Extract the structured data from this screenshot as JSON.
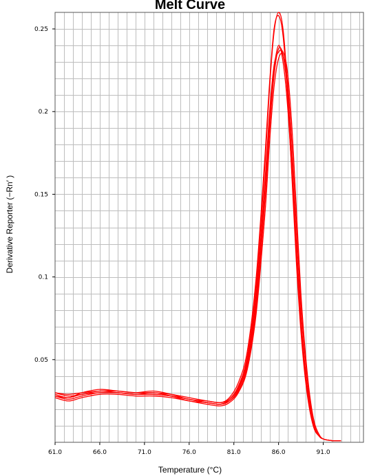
{
  "chart_data": {
    "type": "line",
    "title": "Melt Curve",
    "xlabel": "Temperature (°C)",
    "ylabel": "Derivative Reporter (−Rn′ )",
    "xlim": [
      61.0,
      95.5
    ],
    "ylim": [
      0.0,
      0.26
    ],
    "x_ticks": [
      61.0,
      66.0,
      71.0,
      76.0,
      81.0,
      86.0,
      91.0
    ],
    "x_tick_labels": [
      "61.0",
      "66.0",
      "71.0",
      "76.0",
      "81.0",
      "86.0",
      "91.0"
    ],
    "y_ticks": [
      0.05,
      0.1,
      0.15,
      0.2,
      0.25
    ],
    "y_tick_labels": [
      "0.05",
      "0.1",
      "0.15",
      "0.2",
      "0.25"
    ],
    "grid": true,
    "line_color": "#ff0000",
    "series": [
      {
        "x": [
          61.0,
          62.5,
          64.0,
          66.0,
          68.0,
          70.0,
          72.0,
          74.0,
          76.0,
          78.0,
          79.5,
          80.5,
          81.5,
          82.5,
          83.5,
          84.5,
          85.0,
          85.5,
          86.0,
          86.5,
          87.0,
          87.5,
          88.0,
          88.5,
          89.0,
          89.5,
          90.0,
          90.5,
          91.0,
          92.0,
          93.0
        ],
        "y": [
          0.03,
          0.028,
          0.029,
          0.031,
          0.03,
          0.029,
          0.03,
          0.028,
          0.025,
          0.024,
          0.023,
          0.026,
          0.034,
          0.052,
          0.095,
          0.17,
          0.215,
          0.248,
          0.26,
          0.25,
          0.215,
          0.165,
          0.112,
          0.07,
          0.04,
          0.02,
          0.008,
          0.004,
          0.002,
          0.001,
          0.001
        ]
      },
      {
        "x": [
          61.0,
          62.5,
          64.0,
          66.0,
          68.0,
          70.0,
          72.0,
          74.0,
          76.0,
          78.0,
          79.5,
          80.5,
          81.5,
          82.5,
          83.5,
          84.5,
          85.0,
          85.5,
          86.0,
          86.5,
          87.0,
          87.5,
          88.0,
          88.5,
          89.0,
          89.5,
          90.0,
          90.5,
          91.0,
          92.0,
          93.0
        ],
        "y": [
          0.029,
          0.027,
          0.03,
          0.032,
          0.031,
          0.03,
          0.031,
          0.029,
          0.026,
          0.025,
          0.024,
          0.027,
          0.036,
          0.055,
          0.1,
          0.175,
          0.218,
          0.25,
          0.258,
          0.246,
          0.21,
          0.16,
          0.108,
          0.067,
          0.038,
          0.019,
          0.008,
          0.004,
          0.002,
          0.001,
          0.001
        ]
      },
      {
        "x": [
          61.0,
          62.5,
          64.0,
          66.0,
          68.0,
          70.0,
          72.0,
          74.0,
          76.0,
          78.0,
          79.5,
          80.5,
          81.5,
          82.5,
          83.5,
          84.5,
          85.0,
          85.5,
          86.0,
          86.5,
          87.0,
          87.5,
          88.0,
          88.5,
          89.0,
          89.5,
          90.0,
          90.5,
          91.0,
          92.0,
          93.0
        ],
        "y": [
          0.028,
          0.026,
          0.028,
          0.03,
          0.03,
          0.029,
          0.029,
          0.028,
          0.026,
          0.024,
          0.023,
          0.025,
          0.031,
          0.046,
          0.082,
          0.148,
          0.19,
          0.222,
          0.238,
          0.234,
          0.212,
          0.17,
          0.12,
          0.076,
          0.044,
          0.023,
          0.01,
          0.004,
          0.002,
          0.001,
          0.001
        ]
      },
      {
        "x": [
          61.0,
          62.5,
          64.0,
          66.0,
          68.0,
          70.0,
          72.0,
          74.0,
          76.0,
          78.0,
          79.5,
          80.5,
          81.5,
          82.5,
          83.5,
          84.5,
          85.0,
          85.5,
          86.0,
          86.5,
          87.0,
          87.5,
          88.0,
          88.5,
          89.0,
          89.5,
          90.0,
          90.5,
          91.0,
          92.0,
          93.0
        ],
        "y": [
          0.027,
          0.025,
          0.027,
          0.029,
          0.029,
          0.028,
          0.028,
          0.027,
          0.025,
          0.023,
          0.022,
          0.024,
          0.03,
          0.044,
          0.078,
          0.14,
          0.182,
          0.215,
          0.232,
          0.234,
          0.218,
          0.18,
          0.13,
          0.084,
          0.05,
          0.026,
          0.012,
          0.005,
          0.002,
          0.001,
          0.001
        ]
      },
      {
        "x": [
          61.0,
          62.5,
          64.0,
          66.0,
          68.0,
          70.0,
          72.0,
          74.0,
          76.0,
          78.0,
          79.5,
          80.5,
          81.5,
          82.5,
          83.5,
          84.5,
          85.0,
          85.5,
          86.0,
          86.5,
          87.0,
          87.5,
          88.0,
          88.5,
          89.0,
          89.5,
          90.0,
          90.5,
          91.0,
          92.0,
          93.0
        ],
        "y": [
          0.03,
          0.029,
          0.03,
          0.031,
          0.031,
          0.03,
          0.03,
          0.029,
          0.027,
          0.025,
          0.024,
          0.026,
          0.033,
          0.05,
          0.09,
          0.16,
          0.2,
          0.228,
          0.236,
          0.236,
          0.224,
          0.19,
          0.14,
          0.09,
          0.054,
          0.028,
          0.012,
          0.005,
          0.002,
          0.001,
          0.001
        ]
      },
      {
        "x": [
          61.0,
          62.5,
          64.0,
          66.0,
          68.0,
          70.0,
          72.0,
          74.0,
          76.0,
          78.0,
          79.5,
          80.5,
          81.5,
          82.5,
          83.5,
          84.5,
          85.0,
          85.5,
          86.0,
          86.5,
          87.0,
          87.5,
          88.0,
          88.5,
          89.0,
          89.5,
          90.0,
          90.5,
          91.0,
          92.0,
          93.0
        ],
        "y": [
          0.028,
          0.027,
          0.029,
          0.03,
          0.03,
          0.029,
          0.029,
          0.028,
          0.026,
          0.024,
          0.023,
          0.025,
          0.032,
          0.048,
          0.086,
          0.155,
          0.196,
          0.226,
          0.24,
          0.23,
          0.204,
          0.162,
          0.114,
          0.072,
          0.042,
          0.021,
          0.009,
          0.004,
          0.002,
          0.001,
          0.001
        ]
      }
    ]
  }
}
